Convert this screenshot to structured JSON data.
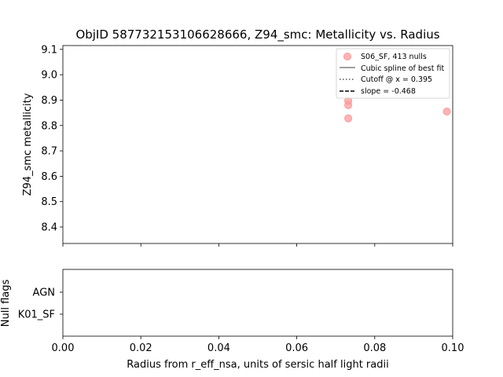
{
  "chart_data": [
    {
      "type": "scatter",
      "title": "ObjID 587732153106628666, Z94_smc: Metallicity vs. Radius",
      "xlabel": "",
      "ylabel": "Z94_smc metallicity",
      "xlim": [
        0.0,
        0.1
      ],
      "ylim": [
        8.335,
        9.115
      ],
      "y_ticks": [
        8.4,
        8.5,
        8.6,
        8.7,
        8.8,
        8.9,
        9.0,
        9.1
      ],
      "y_tick_labels": [
        "8.4",
        "8.5",
        "8.6",
        "8.7",
        "8.8",
        "8.9",
        "9.0",
        "9.1"
      ],
      "x_ticks": [
        0.0,
        0.02,
        0.04,
        0.06,
        0.08,
        0.1
      ],
      "grid": false,
      "legend_position": "top-right",
      "legend": [
        {
          "label": "S06_SF, 413 nulls",
          "kind": "marker",
          "color": "#ff9999"
        },
        {
          "label": "Cubic spline of best fit",
          "kind": "solid",
          "color": "#808080"
        },
        {
          "label": "Cutoff @ x = 0.395",
          "kind": "dotted",
          "color": "#555555"
        },
        {
          "label": "slope = -0.468",
          "kind": "dashed",
          "color": "#000000"
        }
      ],
      "series": [
        {
          "name": "S06_SF, 413 nulls",
          "color": "#ff9999",
          "points": [
            {
              "x": 0.0732,
              "y": 8.897
            },
            {
              "x": 0.0732,
              "y": 8.88
            },
            {
              "x": 0.0732,
              "y": 8.828
            },
            {
              "x": 0.0985,
              "y": 8.855
            }
          ]
        }
      ]
    },
    {
      "type": "scatter",
      "title": "",
      "xlabel": "Radius from r_eff_nsa, units of sersic half light radii",
      "ylabel": "Null flags",
      "xlim": [
        0.0,
        0.1
      ],
      "x_ticks": [
        0.0,
        0.02,
        0.04,
        0.06,
        0.08,
        0.1
      ],
      "x_tick_labels": [
        "0.00",
        "0.02",
        "0.04",
        "0.06",
        "0.08",
        "0.10"
      ],
      "categories": [
        "AGN",
        "K01_SF"
      ],
      "grid": false,
      "series": []
    }
  ]
}
